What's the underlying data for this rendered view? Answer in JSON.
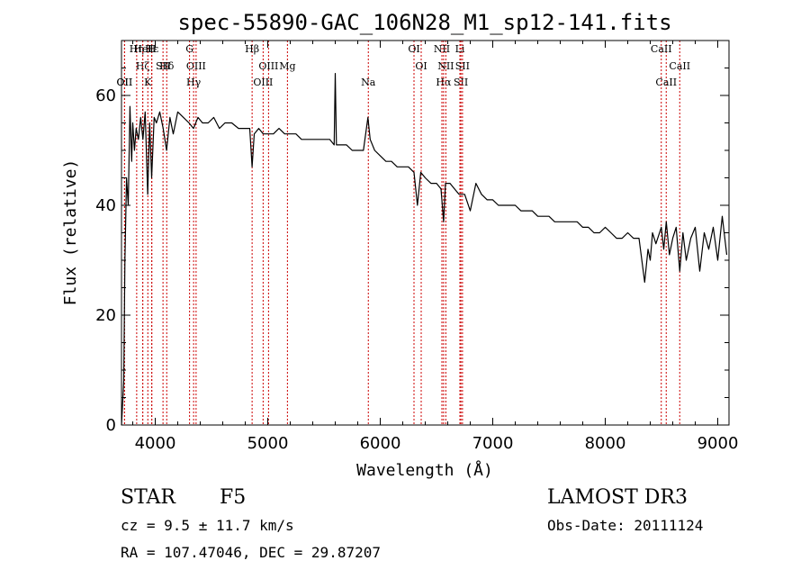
{
  "chart_data": {
    "type": "line",
    "title": "spec-55890-GAC_106N28_M1_sp12-141.fits",
    "xlabel": "Wavelength (Å)",
    "ylabel": "Flux (relative)",
    "xlim": [
      3700,
      9100
    ],
    "ylim": [
      0,
      70
    ],
    "x_ticks": [
      4000,
      5000,
      6000,
      7000,
      8000,
      9000
    ],
    "x_tick_labels": [
      "4000",
      "5000",
      "6000",
      "7000",
      "8000",
      "9000"
    ],
    "y_ticks": [
      0,
      20,
      40,
      60
    ],
    "y_tick_labels": [
      "0",
      "20",
      "40",
      "60"
    ],
    "series": [
      {
        "name": "spectrum",
        "x": [
          3700,
          3720,
          3730,
          3745,
          3760,
          3775,
          3790,
          3800,
          3815,
          3830,
          3850,
          3870,
          3890,
          3910,
          3933,
          3950,
          3968,
          3990,
          4010,
          4040,
          4070,
          4101,
          4130,
          4160,
          4200,
          4250,
          4300,
          4340,
          4380,
          4420,
          4470,
          4520,
          4570,
          4620,
          4680,
          4740,
          4800,
          4840,
          4861,
          4880,
          4920,
          4960,
          5000,
          5050,
          5100,
          5150,
          5200,
          5250,
          5300,
          5350,
          5400,
          5450,
          5500,
          5550,
          5590,
          5600,
          5610,
          5650,
          5700,
          5750,
          5800,
          5850,
          5890,
          5910,
          5950,
          6000,
          6050,
          6100,
          6150,
          6200,
          6250,
          6300,
          6330,
          6360,
          6400,
          6450,
          6500,
          6540,
          6563,
          6580,
          6620,
          6660,
          6700,
          6750,
          6800,
          6850,
          6900,
          6950,
          7000,
          7050,
          7100,
          7150,
          7200,
          7250,
          7300,
          7350,
          7400,
          7450,
          7500,
          7550,
          7600,
          7650,
          7700,
          7750,
          7800,
          7850,
          7900,
          7950,
          8000,
          8050,
          8100,
          8150,
          8200,
          8250,
          8300,
          8350,
          8380,
          8400,
          8420,
          8450,
          8498,
          8520,
          8542,
          8570,
          8600,
          8630,
          8662,
          8690,
          8720,
          8760,
          8800,
          8840,
          8880,
          8920,
          8960,
          9000,
          9040,
          9080
        ],
        "values": [
          0,
          8,
          30,
          45,
          40,
          58,
          48,
          55,
          50,
          54,
          52,
          56,
          52,
          57,
          42,
          55,
          45,
          56,
          55,
          57,
          54,
          50,
          56,
          53,
          57,
          56,
          55,
          54,
          56,
          55,
          55,
          56,
          54,
          55,
          55,
          54,
          54,
          54,
          47,
          53,
          54,
          53,
          53,
          53,
          54,
          53,
          53,
          53,
          52,
          52,
          52,
          52,
          52,
          52,
          51,
          64,
          51,
          51,
          51,
          50,
          50,
          50,
          56,
          52,
          50,
          49,
          48,
          48,
          47,
          47,
          47,
          46,
          40,
          46,
          45,
          44,
          44,
          43,
          37,
          44,
          44,
          43,
          42,
          42,
          39,
          44,
          42,
          41,
          41,
          40,
          40,
          40,
          40,
          39,
          39,
          39,
          38,
          38,
          38,
          37,
          37,
          37,
          37,
          37,
          36,
          36,
          35,
          35,
          36,
          35,
          34,
          34,
          35,
          34,
          34,
          26,
          32,
          30,
          35,
          33,
          36,
          32,
          37,
          31,
          34,
          36,
          28,
          35,
          30,
          34,
          36,
          28,
          35,
          32,
          36,
          30,
          38,
          31
        ]
      }
    ],
    "line_markers": [
      {
        "label": "Hη",
        "wavelength": 3835
      },
      {
        "label": "Hζ",
        "wavelength": 3889
      },
      {
        "label": "K",
        "wavelength": 3934
      },
      {
        "label": "H",
        "wavelength": 3968
      },
      {
        "label": "Hδ",
        "wavelength": 4102
      },
      {
        "label": "OII",
        "wavelength": 3727
      },
      {
        "label": "HeI",
        "wavelength": 3889
      },
      {
        "label": "SII",
        "wavelength": 4069
      },
      {
        "label": "OII",
        "wavelength": 3727
      },
      {
        "label": "Hε",
        "wavelength": 3970
      },
      {
        "label": "OIII",
        "wavelength": 4363
      },
      {
        "label": "Hγ",
        "wavelength": 4341
      },
      {
        "label": "G",
        "wavelength": 4305
      },
      {
        "label": "OIII",
        "wavelength": 5007
      },
      {
        "label": "OIII",
        "wavelength": 4959
      },
      {
        "label": "Hβ",
        "wavelength": 4861
      },
      {
        "label": "Mg",
        "wavelength": 5175
      },
      {
        "label": "Na",
        "wavelength": 5894
      },
      {
        "label": "OI",
        "wavelength": 6300
      },
      {
        "label": "OI",
        "wavelength": 6364
      },
      {
        "label": "Hα",
        "wavelength": 6563
      },
      {
        "label": "NII",
        "wavelength": 6548
      },
      {
        "label": "NII",
        "wavelength": 6583
      },
      {
        "label": "SII",
        "wavelength": 6717
      },
      {
        "label": "Li",
        "wavelength": 6708
      },
      {
        "label": "SII",
        "wavelength": 6731
      },
      {
        "label": "CaII",
        "wavelength": 8542
      },
      {
        "label": "CaII",
        "wavelength": 8498
      },
      {
        "label": "CaII",
        "wavelength": 8662
      }
    ]
  },
  "info": {
    "object_class": "STAR",
    "subclass": "F5",
    "survey": "LAMOST DR3",
    "redshift": "cz = 9.5 ± 11.7 km/s",
    "obs_date": "Obs-Date: 20111124",
    "coords": "RA = 107.47046, DEC =  29.87207"
  },
  "colors": {
    "spectrum": "#000000",
    "line_marker": "#cc0000",
    "frame": "#000000"
  }
}
